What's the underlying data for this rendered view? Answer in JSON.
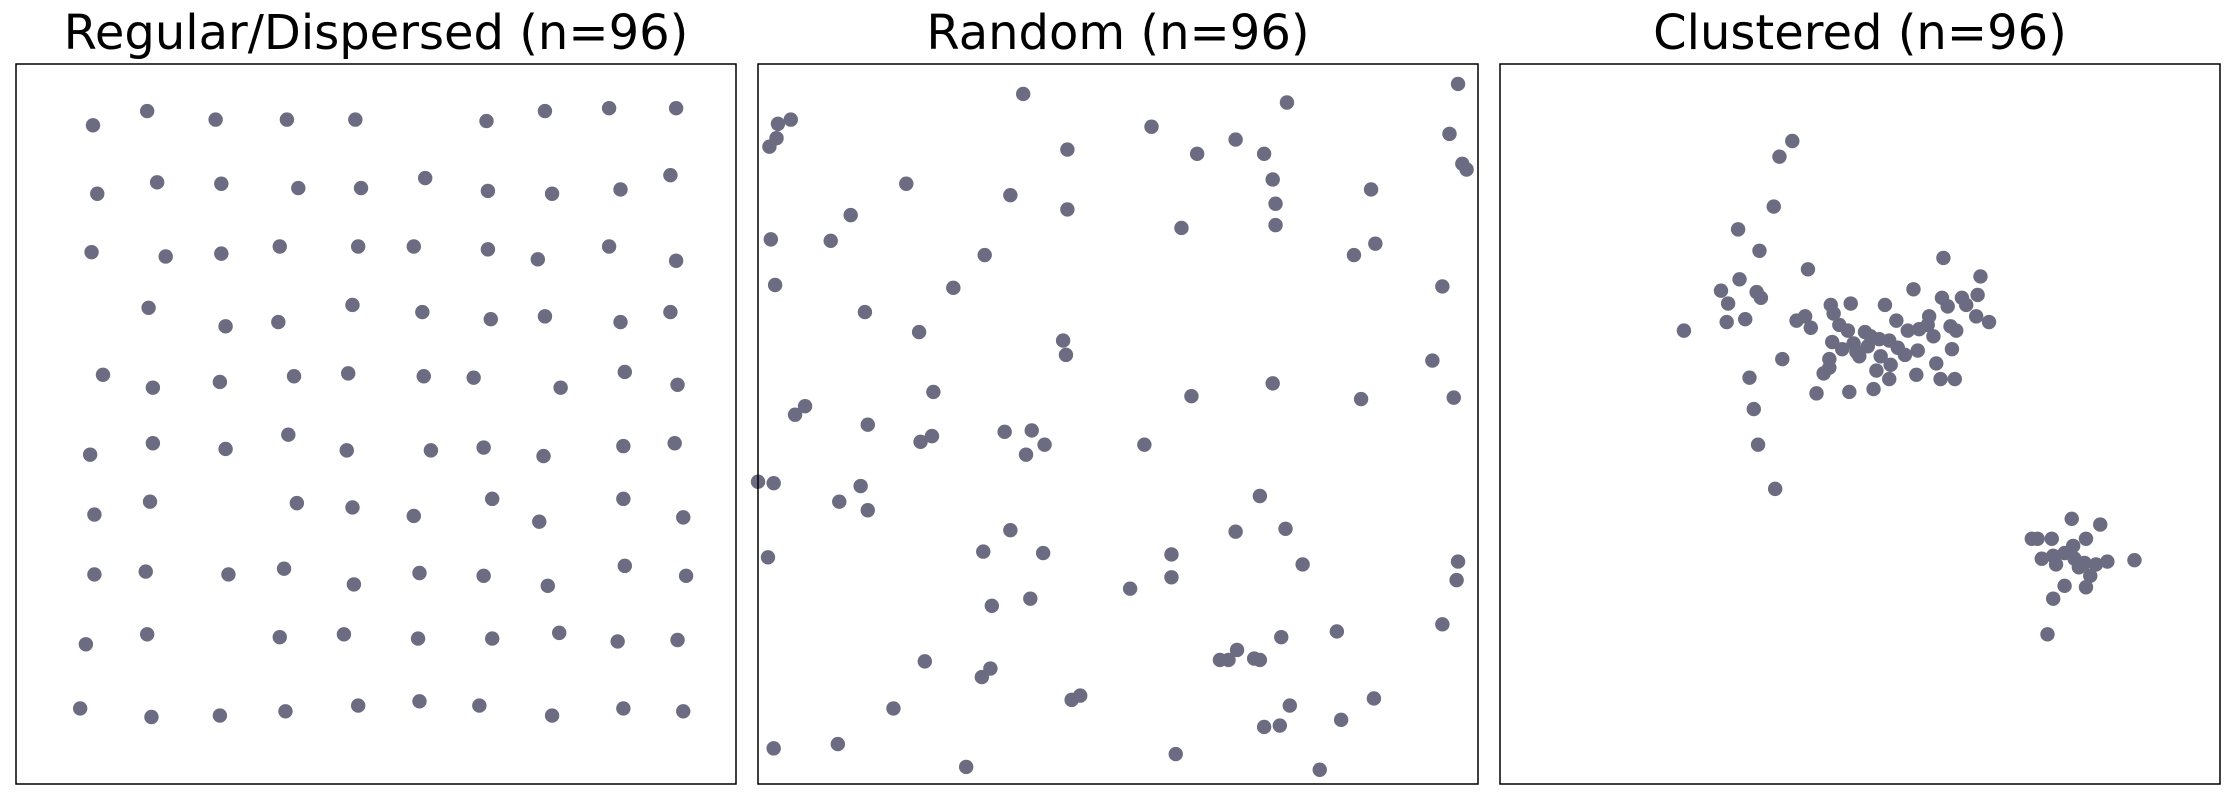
{
  "chart_data": [
    {
      "type": "scatter",
      "title": "Regular/Dispersed (n=96)",
      "color": "#6b6b82",
      "xlim": [
        0,
        505
      ],
      "ylim": [
        0,
        505
      ],
      "x": [
        54,
        92,
        140,
        190,
        238,
        330,
        371,
        416,
        463,
        57,
        99,
        144,
        198,
        242,
        287,
        331,
        376,
        424,
        459,
        53,
        105,
        144,
        185,
        240,
        279,
        331,
        366,
        416,
        463,
        93,
        147,
        184,
        236,
        285,
        333,
        371,
        424,
        459,
        61,
        96,
        143,
        195,
        233,
        286,
        321,
        382,
        427,
        464,
        52,
        96,
        147,
        191,
        232,
        291,
        328,
        370,
        426,
        462,
        55,
        94,
        197,
        236,
        279,
        334,
        367,
        426,
        468,
        55,
        91,
        149,
        188,
        237,
        283,
        328,
        373,
        427,
        470,
        49,
        92,
        185,
        230,
        282,
        334,
        381,
        422,
        464,
        45,
        95,
        143,
        189,
        240,
        283,
        325,
        376,
        426,
        468
      ],
      "y": [
        462,
        472,
        466,
        466,
        466,
        465,
        472,
        474,
        474,
        414,
        422,
        421,
        418,
        418,
        425,
        416,
        414,
        417,
        427,
        373,
        370,
        372,
        377,
        377,
        377,
        375,
        368,
        377,
        367,
        334,
        321,
        324,
        336,
        331,
        326,
        328,
        324,
        331,
        287,
        278,
        282,
        286,
        288,
        286,
        285,
        278,
        289,
        280,
        231,
        239,
        235,
        245,
        234,
        234,
        236,
        230,
        237,
        239,
        189,
        198,
        197,
        194,
        188,
        200,
        184,
        200,
        187,
        147,
        149,
        147,
        151,
        140,
        148,
        146,
        139,
        153,
        146,
        98,
        105,
        103,
        105,
        102,
        102,
        106,
        100,
        101,
        53,
        47,
        48,
        51,
        55,
        58,
        55,
        48,
        53,
        51
      ]
    },
    {
      "type": "scatter",
      "title": "Random (n=96)",
      "color": "#6b6b82",
      "xlim": [
        0,
        505
      ],
      "ylim": [
        0,
        505
      ],
      "x": [
        491,
        186,
        371,
        14,
        23,
        13,
        8,
        276,
        485,
        217,
        308,
        335,
        355,
        494,
        497,
        361,
        104,
        430,
        177,
        363,
        217,
        65,
        363,
        297,
        51,
        9,
        433,
        418,
        159,
        12,
        480,
        137,
        75,
        113,
        214,
        216,
        473,
        361,
        123,
        304,
        488,
        423,
        33,
        26,
        77,
        173,
        192,
        122,
        114,
        201,
        271,
        188,
        0,
        11,
        72,
        57,
        77,
        352,
        177,
        335,
        370,
        158,
        200,
        7,
        290,
        382,
        491,
        290,
        490,
        261,
        191,
        164,
        480,
        406,
        367,
        336,
        348,
        352,
        324,
        330,
        117,
        163,
        157,
        226,
        220,
        432,
        95,
        373,
        409,
        366,
        355,
        11,
        56,
        293,
        146,
        394
      ],
      "y": [
        491,
        484,
        478,
        463,
        466,
        453,
        447,
        461,
        456,
        445,
        442,
        452,
        442,
        435,
        431,
        424,
        421,
        417,
        413,
        407,
        403,
        399,
        392,
        390,
        381,
        382,
        379,
        371,
        371,
        350,
        349,
        348,
        331,
        317,
        311,
        301,
        297,
        281,
        275,
        272,
        271,
        270,
        265,
        259,
        252,
        247,
        248,
        244,
        240,
        238,
        238,
        231,
        212,
        211,
        209,
        198,
        192,
        202,
        178,
        177,
        179,
        163,
        162,
        159,
        161,
        154,
        156,
        145,
        143,
        137,
        130,
        125,
        112,
        107,
        103,
        94,
        88,
        87,
        87,
        87,
        86,
        81,
        75,
        62,
        59,
        60,
        53,
        55,
        45,
        41,
        40,
        25,
        28,
        21,
        12,
        10
      ]
    },
    {
      "type": "scatter",
      "title": "Clustered (n=96)",
      "color": "#6b6b82",
      "xlim": [
        0,
        505
      ],
      "ylim": [
        0,
        505
      ],
      "x": [
        205,
        196,
        192,
        167,
        182,
        216,
        168,
        155,
        180,
        183,
        160,
        311,
        337,
        290,
        310,
        324,
        335,
        232,
        246,
        270,
        314,
        327,
        214,
        234,
        159,
        172,
        129,
        218,
        238,
        244,
        256,
        260,
        300,
        294,
        316,
        334,
        343,
        304,
        233,
        248,
        266,
        273,
        279,
        240,
        258,
        293,
        317,
        252,
        267,
        284,
        231,
        198,
        274,
        306,
        231,
        227,
        264,
        292,
        309,
        319,
        273,
        175,
        222,
        245,
        262,
        178,
        181,
        193,
        250,
        286,
        208,
        301,
        320,
        278,
        401,
        421,
        377,
        387,
        411,
        402,
        388,
        396,
        380,
        403,
        410,
        418,
        426,
        445,
        390,
        406,
        414,
        411,
        396,
        388,
        384,
        373
      ],
      "y": [
        451,
        440,
        405,
        389,
        374,
        361,
        354,
        346,
        345,
        341,
        337,
        369,
        356,
        347,
        341,
        341,
        343,
        336,
        337,
        336,
        335,
        336,
        328,
        330,
        324,
        326,
        318,
        320,
        322,
        318,
        317,
        314,
        322,
        319,
        321,
        328,
        324,
        314,
        310,
        309,
        312,
        311,
        306,
        305,
        307,
        304,
        305,
        300,
        300,
        301,
        298,
        298,
        294,
        295,
        292,
        288,
        290,
        287,
        284,
        284,
        284,
        285,
        274,
        275,
        277,
        263,
        238,
        207,
        303,
        318,
        325,
        328,
        318,
        325,
        186,
        182,
        172,
        172,
        172,
        167,
        160,
        162,
        158,
        158,
        155,
        154,
        156,
        157,
        154,
        152,
        146,
        138,
        139,
        130,
        105,
        172
      ]
    }
  ]
}
